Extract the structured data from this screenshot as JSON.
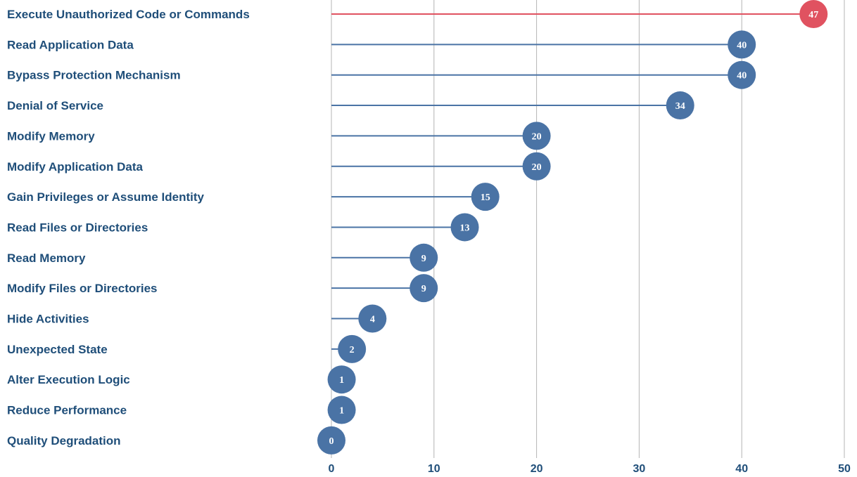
{
  "chart_data": {
    "type": "lollipop",
    "categories": [
      "Execute Unauthorized Code or Commands",
      "Read Application Data",
      "Bypass Protection Mechanism",
      "Denial of Service",
      "Modify Memory",
      "Modify Application Data",
      "Gain Privileges or Assume Identity",
      "Read Files or Directories",
      "Read Memory",
      "Modify Files or Directories",
      "Hide Activities",
      "Unexpected State",
      "Alter Execution Logic",
      "Reduce Performance",
      "Quality Degradation"
    ],
    "values": [
      47,
      40,
      40,
      34,
      20,
      20,
      15,
      13,
      9,
      9,
      4,
      2,
      1,
      1,
      0
    ],
    "value_labels": [
      "47",
      "40",
      "40",
      "34",
      "20",
      "20",
      "15",
      "13",
      "9",
      "9",
      "4",
      "2",
      "1",
      "1",
      "0"
    ],
    "xlim": [
      0,
      50
    ],
    "x_ticks": [
      0,
      10,
      20,
      30,
      40,
      50
    ],
    "x_tick_labels": [
      "0",
      "10",
      "20",
      "30",
      "40",
      "50"
    ],
    "grid": "vertical",
    "highlight_index": 0,
    "colors": {
      "highlight": "#e05260",
      "default": "#4a73a5",
      "text": "#1f4e79",
      "grid": "#b4b4b4"
    }
  }
}
